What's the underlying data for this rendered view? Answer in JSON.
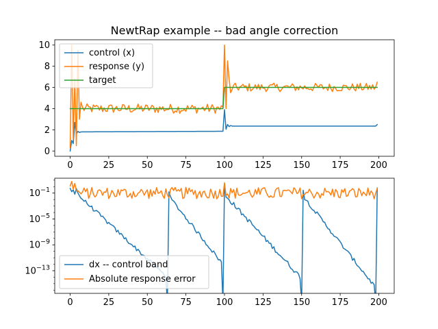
{
  "chart_data": [
    {
      "type": "line",
      "title": "NewtRap example -- bad angle correction",
      "xlabel": "",
      "ylabel": "",
      "xlim": [
        -10,
        210
      ],
      "ylim": [
        -0.5,
        10.5
      ],
      "xticks": [
        0,
        25,
        50,
        75,
        100,
        125,
        150,
        175,
        200
      ],
      "yticks": [
        0,
        2,
        4,
        6,
        8,
        10
      ],
      "legend_position": "upper-left",
      "colors": {
        "control": "#1f77b4",
        "response": "#ff7f0e",
        "target": "#2ca02c"
      },
      "series": [
        {
          "name": "control (x)",
          "key": "control",
          "values_summary": "starts 0, spikes to ~2.7 near x=3, settles ~1.8 until x=99, spikes ~3.9 at x=100, settles ~2.35 until x=199 ending ~2.5"
        },
        {
          "name": "response (y)",
          "key": "response",
          "values_summary": "oscillates 0.3–10 for x<6, noisy around 4 (±0.5) until x=99, spikes to 10 at x=100, noisy around 6 (±0.4) until x=199"
        },
        {
          "name": "target",
          "key": "target",
          "values_summary": "4 for x<100, 6 for x>=100"
        }
      ]
    },
    {
      "type": "line",
      "title": "",
      "xlabel": "",
      "ylabel": "",
      "yscale": "log",
      "xlim": [
        -10,
        210
      ],
      "ylim_exp": [
        -16.5,
        1.3
      ],
      "xticks": [
        0,
        25,
        50,
        75,
        100,
        125,
        150,
        175,
        200
      ],
      "yticks": [
        "10^{-1}",
        "10^{-5}",
        "10^{-9}",
        "10^{-13}"
      ],
      "ytick_exponents": [
        -1,
        -5,
        -9,
        -13
      ],
      "legend_position": "lower-left",
      "colors": {
        "dx": "#1f77b4",
        "err": "#ff7f0e"
      },
      "series": [
        {
          "name": "dx -- control band",
          "key": "dx",
          "values_summary": "drops from ~1 to ~1e-16 over each segment, resets at x=64, 100, 151, 199"
        },
        {
          "name": "Absolute response error",
          "key": "err",
          "values_summary": "fluctuates between ~0.01 and ~1 throughout"
        }
      ]
    }
  ]
}
